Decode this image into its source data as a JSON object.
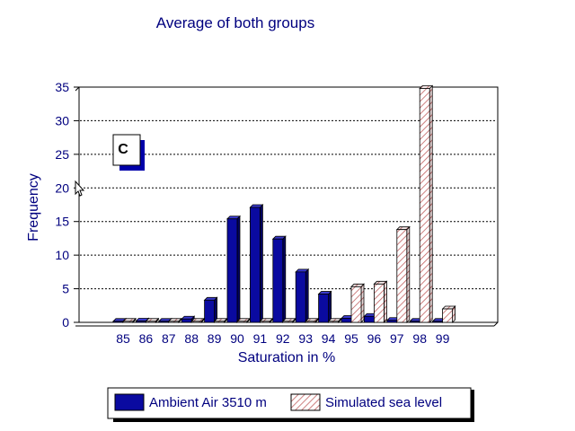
{
  "chart_data": {
    "type": "bar",
    "title": "Average of both groups",
    "xlabel": "Saturation in %",
    "ylabel": "Frequency",
    "panel_label": "C",
    "categories": [
      "85",
      "86",
      "87",
      "88",
      "89",
      "90",
      "91",
      "92",
      "93",
      "94",
      "95",
      "96",
      "97",
      "98",
      "99"
    ],
    "series": [
      {
        "name": "Ambient Air 3510 m",
        "values": [
          0,
          0.2,
          0,
          0.5,
          3.3,
          15.4,
          17.1,
          12.4,
          7.5,
          4.2,
          0.6,
          0.9,
          0.3,
          0,
          0
        ]
      },
      {
        "name": "Simulated sea level",
        "values": [
          0,
          0,
          0,
          0,
          0,
          0,
          0,
          0,
          0,
          0,
          5.3,
          5.7,
          13.8,
          34.8,
          2.0
        ]
      }
    ],
    "ylim": [
      0,
      35
    ],
    "yticks": [
      "0",
      "5",
      "10",
      "15",
      "20",
      "25",
      "30",
      "35"
    ],
    "grid": true,
    "legend_position": "bottom",
    "colors": {
      "text": "#00007f",
      "series1": "#0a0aa0",
      "series2_hatch": "#c06060"
    }
  }
}
